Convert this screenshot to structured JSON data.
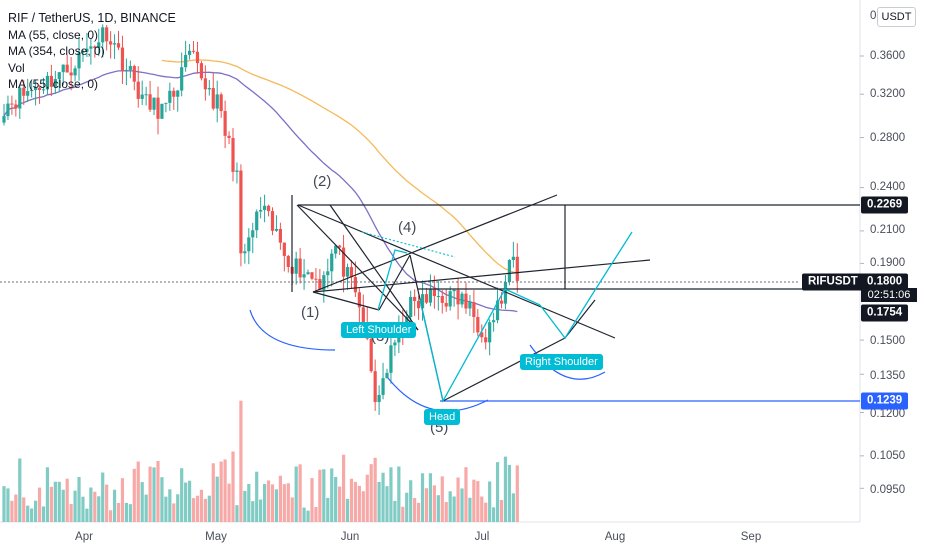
{
  "legend": {
    "title": "RIF / TetherUS, 1D, BINANCE",
    "ma1": "MA (55, close, 0)",
    "ma2": "MA (354, close, 0)",
    "vol": "Vol",
    "ma3": "MA (55, close, 0)"
  },
  "currency_button": "USDT",
  "colors": {
    "up": "#26a69a",
    "down": "#ef5350",
    "vol_up": "#80cbc4",
    "vol_down": "#f7a9a7",
    "ma55": "#7e70c4",
    "ma354": "#f5b95a",
    "pattern": "#00bcd4",
    "lines": "#1f2430",
    "blue": "#2962ff"
  },
  "annotations": {
    "points": [
      "(1)",
      "(2)",
      "(3)",
      "(4)",
      "(5)"
    ],
    "left_shoulder": "Left Shoulder",
    "head": "Head",
    "right_shoulder": "Right Shoulder"
  },
  "price_scale": {
    "ticks": [
      "0.3600",
      "0.3200",
      "0.2800",
      "0.2400",
      "0.2100",
      "0.1900",
      "0.1500",
      "0.1350",
      "0.1200",
      "0.1050",
      "0.0950"
    ],
    "tags": {
      "upper": "0.2269",
      "last": "0.1800",
      "neck": "0.1754",
      "head": "0.1239"
    },
    "symbol": "RIFUSDT",
    "countdown": "02:51:06"
  },
  "time_axis": [
    "Apr",
    "May",
    "Jun",
    "Jul",
    "Aug",
    "Sep"
  ],
  "chart_data": {
    "type": "candlestick",
    "symbol": "RIF / TetherUS",
    "timeframe": "1D",
    "exchange": "BINANCE",
    "last_price": 0.18,
    "anchors": [
      {
        "date": "2021-03-20",
        "close": 0.31
      },
      {
        "date": "2021-04-05",
        "close": 0.345
      },
      {
        "date": "2021-04-15",
        "close": 0.39
      },
      {
        "date": "2021-04-25",
        "close": 0.31
      },
      {
        "date": "2021-04-30",
        "close": 0.305
      },
      {
        "date": "2021-05-06",
        "close": 0.36
      },
      {
        "date": "2021-05-13",
        "close": 0.31
      },
      {
        "date": "2021-05-18",
        "close": 0.25
      },
      {
        "date": "2021-05-19",
        "close": 0.19
      },
      {
        "date": "2021-05-24",
        "close": 0.225
      },
      {
        "date": "2021-06-01",
        "close": 0.19
      },
      {
        "date": "2021-06-08",
        "close": 0.18
      },
      {
        "date": "2021-06-12",
        "close": 0.2
      },
      {
        "date": "2021-06-19",
        "close": 0.16
      },
      {
        "date": "2021-06-22",
        "close": 0.1239
      },
      {
        "date": "2021-06-30",
        "close": 0.165
      },
      {
        "date": "2021-07-07",
        "close": 0.172
      },
      {
        "date": "2021-07-14",
        "close": 0.17
      },
      {
        "date": "2021-07-20",
        "close": 0.154
      },
      {
        "date": "2021-07-24",
        "close": 0.17
      },
      {
        "date": "2021-07-27",
        "close": 0.194
      },
      {
        "date": "2021-07-28",
        "close": 0.18
      }
    ],
    "levels": {
      "upper": 0.2269,
      "neckline": 0.1754,
      "head_low": 0.1239
    },
    "ma": [
      {
        "name": "MA (55, close, 0)",
        "color": "#7e70c4"
      },
      {
        "name": "MA (354, close, 0)",
        "color": "#f5b95a"
      }
    ],
    "volume": {
      "visible": true
    },
    "y_scale": "log",
    "ylim": [
      0.085,
      0.44
    ],
    "x_range": [
      "2021-03-20",
      "2021-09-30"
    ]
  }
}
